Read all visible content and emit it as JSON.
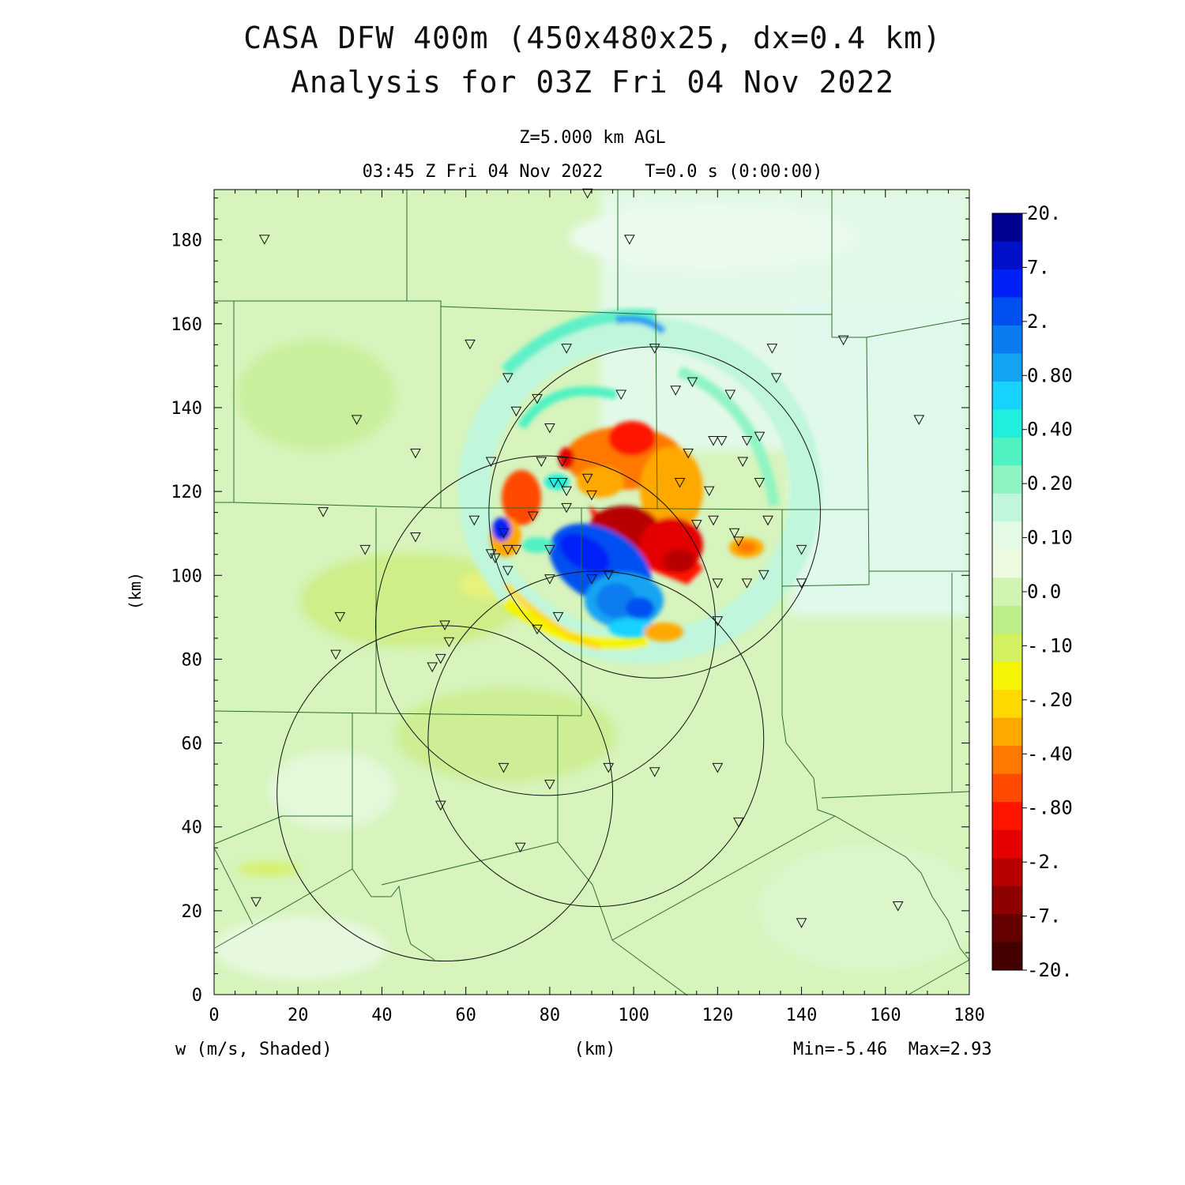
{
  "chart_data": {
    "type": "heatmap",
    "title": "CASA DFW 400m (450x480x25, dx=0.4 km)",
    "subtitle": "Analysis for 03Z Fri 04 Nov 2022",
    "level_label": "Z=5.000 km AGL",
    "time_label": "03:45 Z Fri 04 Nov 2022    T=0.0 s (0:00:00)",
    "xlabel": "(km)",
    "ylabel": "(km)",
    "variable_label": "w (m/s, Shaded)",
    "minmax_label": "Min=-5.46  Max=2.93",
    "xlim": [
      0,
      180
    ],
    "ylim": [
      0,
      192
    ],
    "x_ticks": [
      "0",
      "20",
      "40",
      "60",
      "80",
      "100",
      "120",
      "140",
      "160",
      "180"
    ],
    "y_ticks": [
      "0",
      "20",
      "40",
      "60",
      "80",
      "100",
      "120",
      "140",
      "160",
      "180"
    ],
    "colorbar_labels": [
      "20.",
      "7.",
      "2.",
      "0.80",
      "0.40",
      "0.20",
      "0.10",
      "0.0",
      "-.10",
      "-.20",
      "-.40",
      "-.80",
      "-2.",
      "-7.",
      "-20."
    ],
    "colorbar_colors": [
      "#000090",
      "#0010c8",
      "#0020f8",
      "#0050f0",
      "#0a7cf0",
      "#12a4f2",
      "#18d2ff",
      "#22eedd",
      "#50f2c2",
      "#90f4c2",
      "#bff6dc",
      "#e6fbe6",
      "#ecfbe0",
      "#d2f4b2",
      "#bcee88",
      "#d2f060",
      "#f4f404",
      "#ffd800",
      "#ffa800",
      "#ff7800",
      "#ff4a00",
      "#ff1400",
      "#e40000",
      "#b80000",
      "#8c0000",
      "#640000",
      "#440000"
    ],
    "radar_circles": [
      {
        "cx": 105,
        "cy": 115,
        "r": 39.5
      },
      {
        "cx": 79,
        "cy": 88,
        "r": 40.5
      },
      {
        "cx": 91,
        "cy": 61,
        "r": 40
      },
      {
        "cx": 55,
        "cy": 48,
        "r": 40
      }
    ],
    "stations": [
      [
        12,
        180
      ],
      [
        89,
        191
      ],
      [
        99,
        180
      ],
      [
        61,
        155
      ],
      [
        84,
        154
      ],
      [
        105,
        154
      ],
      [
        133,
        154
      ],
      [
        150,
        156
      ],
      [
        70,
        147
      ],
      [
        114,
        146
      ],
      [
        134,
        147
      ],
      [
        77,
        142
      ],
      [
        97,
        143
      ],
      [
        110,
        144
      ],
      [
        123,
        143
      ],
      [
        34,
        137
      ],
      [
        72,
        139
      ],
      [
        80,
        135
      ],
      [
        168,
        137
      ],
      [
        48,
        129
      ],
      [
        66,
        127
      ],
      [
        78,
        127
      ],
      [
        83,
        127
      ],
      [
        113,
        129
      ],
      [
        119,
        132
      ],
      [
        121,
        132
      ],
      [
        127,
        132
      ],
      [
        130,
        133
      ],
      [
        83,
        122
      ],
      [
        81,
        122
      ],
      [
        89,
        123
      ],
      [
        84,
        120
      ],
      [
        111,
        122
      ],
      [
        118,
        120
      ],
      [
        126,
        127
      ],
      [
        130,
        122
      ],
      [
        26,
        115
      ],
      [
        62,
        113
      ],
      [
        76,
        114
      ],
      [
        84,
        116
      ],
      [
        90,
        119
      ],
      [
        115,
        112
      ],
      [
        119,
        113
      ],
      [
        124,
        110
      ],
      [
        132,
        113
      ],
      [
        36,
        106
      ],
      [
        48,
        109
      ],
      [
        66,
        105
      ],
      [
        67,
        104
      ],
      [
        70,
        106
      ],
      [
        72,
        106
      ],
      [
        80,
        106
      ],
      [
        69,
        110
      ],
      [
        125,
        108
      ],
      [
        140,
        106
      ],
      [
        70,
        101
      ],
      [
        80,
        99
      ],
      [
        90,
        99
      ],
      [
        94,
        100
      ],
      [
        120,
        98
      ],
      [
        127,
        98
      ],
      [
        131,
        100
      ],
      [
        140,
        98
      ],
      [
        30,
        90
      ],
      [
        55,
        88
      ],
      [
        77,
        87
      ],
      [
        82,
        90
      ],
      [
        120,
        89
      ],
      [
        56,
        84
      ],
      [
        54,
        80
      ],
      [
        52,
        78
      ],
      [
        29,
        81
      ],
      [
        69,
        54
      ],
      [
        80,
        50
      ],
      [
        94,
        54
      ],
      [
        105,
        53
      ],
      [
        120,
        54
      ],
      [
        54,
        45
      ],
      [
        125,
        41
      ],
      [
        73,
        35
      ],
      [
        10,
        22
      ],
      [
        140,
        17
      ],
      [
        163,
        21
      ]
    ]
  }
}
